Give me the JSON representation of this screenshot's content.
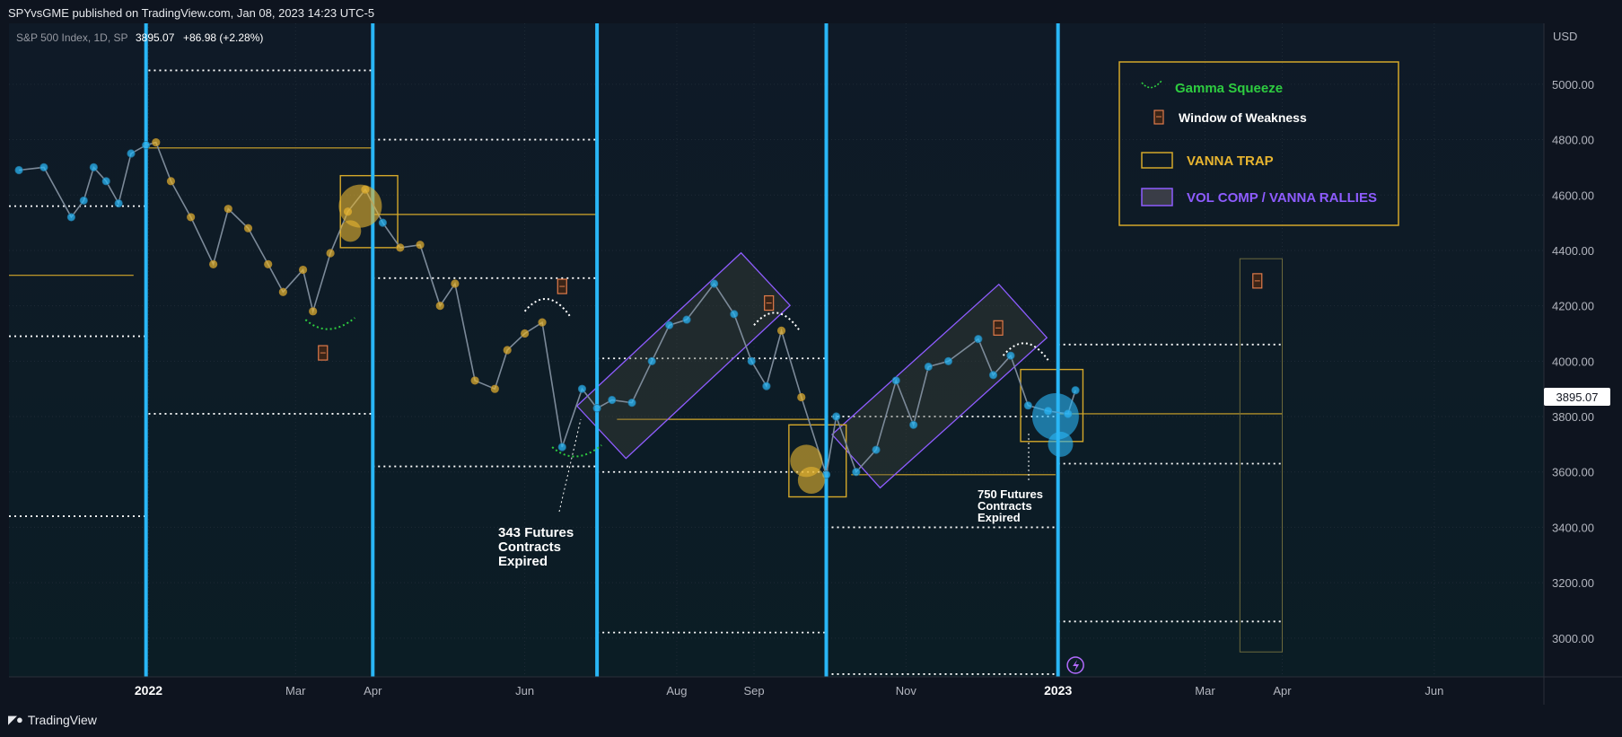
{
  "header": {
    "publish_line": "SPYvsGME published on TradingView.com, Jan 08, 2023 14:23 UTC-5"
  },
  "footer": {
    "brand": "TradingView"
  },
  "colors": {
    "price_cyan": "#29b6f6",
    "price_gold": "#e8b530",
    "trap": "#d4a82a",
    "comp": "#8e5cff",
    "squeeze": "#2ecc40",
    "expiry": "#29b6f6"
  },
  "chart_data": {
    "type": "line",
    "symbol_label": "S&P 500 Index, 1D, SP",
    "last_price": "3895.07",
    "change": "+86.98 (+2.28%)",
    "currency": "USD",
    "y_ticks": [
      "5000.00",
      "4800.00",
      "4600.00",
      "4400.00",
      "4200.00",
      "4000.00",
      "3800.00",
      "3600.00",
      "3400.00",
      "3200.00",
      "3000.00"
    ],
    "y_tick_values": [
      5000,
      4800,
      4600,
      4400,
      4200,
      4000,
      3800,
      3600,
      3400,
      3200,
      3000
    ],
    "ylim": [
      2860,
      5220
    ],
    "x_ticks": [
      "2022",
      "Mar",
      "Apr",
      "Jun",
      "Aug",
      "Sep",
      "Nov",
      "2023",
      "Mar",
      "Apr",
      "Jun"
    ],
    "x_tick_dates": [
      "2022-01-01",
      "2022-03-01",
      "2022-04-01",
      "2022-06-01",
      "2022-08-01",
      "2022-09-01",
      "2022-11-01",
      "2023-01-01",
      "2023-03-01",
      "2023-04-01",
      "2023-06-01"
    ],
    "xlim": [
      "2021-11-06",
      "2023-07-15"
    ],
    "series": [
      {
        "dates": [
          "2021-11-10",
          "2021-11-20",
          "2021-12-01",
          "2021-12-06",
          "2021-12-10",
          "2021-12-15",
          "2021-12-20",
          "2021-12-25",
          "2021-12-31",
          "2022-01-04",
          "2022-01-10",
          "2022-01-18",
          "2022-01-27",
          "2022-02-02",
          "2022-02-10",
          "2022-02-18",
          "2022-02-24",
          "2022-03-04",
          "2022-03-08",
          "2022-03-15",
          "2022-03-22",
          "2022-03-29",
          "2022-04-05",
          "2022-04-12",
          "2022-04-20",
          "2022-04-28",
          "2022-05-04",
          "2022-05-12",
          "2022-05-20",
          "2022-05-25",
          "2022-06-01",
          "2022-06-08",
          "2022-06-16",
          "2022-06-24",
          "2022-06-30",
          "2022-07-06",
          "2022-07-14",
          "2022-07-22",
          "2022-07-29",
          "2022-08-05",
          "2022-08-16",
          "2022-08-24",
          "2022-08-31",
          "2022-09-06",
          "2022-09-12",
          "2022-09-20",
          "2022-09-30",
          "2022-10-04",
          "2022-10-12",
          "2022-10-20",
          "2022-10-28",
          "2022-11-04",
          "2022-11-10",
          "2022-11-18",
          "2022-11-30",
          "2022-12-06",
          "2022-12-13",
          "2022-12-20",
          "2022-12-28",
          "2023-01-05",
          "2023-01-08"
        ],
        "values": [
          4690,
          4700,
          4520,
          4580,
          4700,
          4650,
          4570,
          4750,
          4780,
          4790,
          4650,
          4520,
          4350,
          4550,
          4480,
          4350,
          4250,
          4330,
          4180,
          4390,
          4540,
          4620,
          4500,
          4410,
          4420,
          4200,
          4280,
          3930,
          3900,
          4040,
          4100,
          4140,
          3690,
          3900,
          3830,
          3860,
          3850,
          4000,
          4130,
          4150,
          4280,
          4170,
          4000,
          3910,
          4110,
          3870,
          3590,
          3800,
          3600,
          3680,
          3930,
          3770,
          3980,
          4000,
          4080,
          3950,
          4020,
          3840,
          3820,
          3810,
          3895
        ]
      }
    ],
    "expiry_markers": [
      "2021-12-31",
      "2022-04-01",
      "2022-06-30",
      "2022-09-30",
      "2023-01-01"
    ],
    "legend": {
      "items": [
        {
          "label": "Gamma Squeeze",
          "kind": "squeeze"
        },
        {
          "label": "Window of Weakness",
          "kind": "weakness"
        },
        {
          "label": "VANNA TRAP",
          "kind": "trap"
        },
        {
          "label": "VOL COMP / VANNA RALLIES",
          "kind": "comp"
        }
      ],
      "placement": "top-right"
    },
    "annotations": {
      "a343": [
        "343 Futures",
        "Contracts",
        "Expired"
      ],
      "a750": [
        "750 Futures",
        "Contracts",
        "Expired"
      ]
    },
    "level_lines": [
      {
        "value": 5050,
        "from": "2022-01-01",
        "to": "2022-04-01"
      },
      {
        "value": 4800,
        "from": "2022-04-01",
        "to": "2022-06-30"
      },
      {
        "value": 4300,
        "from": "2022-04-01",
        "to": "2022-06-30"
      },
      {
        "value": 4560,
        "from": "2021-11-01",
        "to": "2021-12-31"
      },
      {
        "value": 4090,
        "from": "2021-11-01",
        "to": "2021-12-31"
      },
      {
        "value": 3810,
        "from": "2022-01-01",
        "to": "2022-04-01"
      },
      {
        "value": 3440,
        "from": "2021-11-01",
        "to": "2021-12-31"
      },
      {
        "value": 3620,
        "from": "2022-04-01",
        "to": "2022-06-30"
      },
      {
        "value": 4010,
        "from": "2022-06-30",
        "to": "2022-09-30"
      },
      {
        "value": 3600,
        "from": "2022-06-30",
        "to": "2022-09-30"
      },
      {
        "value": 3020,
        "from": "2022-06-30",
        "to": "2022-09-30"
      },
      {
        "value": 3800,
        "from": "2022-09-30",
        "to": "2023-01-01"
      },
      {
        "value": 3400,
        "from": "2022-09-30",
        "to": "2023-01-01"
      },
      {
        "value": 2870,
        "from": "2022-09-30",
        "to": "2023-01-01"
      },
      {
        "value": 4060,
        "from": "2023-01-01",
        "to": "2023-04-01"
      },
      {
        "value": 3630,
        "from": "2023-01-01",
        "to": "2023-04-01"
      },
      {
        "value": 3060,
        "from": "2023-01-01",
        "to": "2023-04-01"
      }
    ],
    "gold_lines": [
      {
        "value": 4310,
        "from": "2021-11-06",
        "to": "2021-12-26"
      },
      {
        "value": 4770,
        "from": "2021-12-31",
        "to": "2022-04-01"
      },
      {
        "value": 4530,
        "from": "2022-04-01",
        "to": "2022-06-30"
      },
      {
        "value": 3790,
        "from": "2022-07-08",
        "to": "2022-09-30"
      },
      {
        "value": 3590,
        "from": "2022-10-10",
        "to": "2022-12-31"
      },
      {
        "value": 3810,
        "from": "2023-01-01",
        "to": "2023-04-01"
      }
    ],
    "trap_boxes": [
      {
        "x0": "2022-03-19",
        "x1": "2022-04-11",
        "y0": 4410,
        "y1": 4670
      },
      {
        "x0": "2022-09-15",
        "x1": "2022-10-08",
        "y0": 3510,
        "y1": 3770
      },
      {
        "x0": "2022-12-17",
        "x1": "2023-01-11",
        "y0": 3710,
        "y1": 3970
      }
    ]
  }
}
